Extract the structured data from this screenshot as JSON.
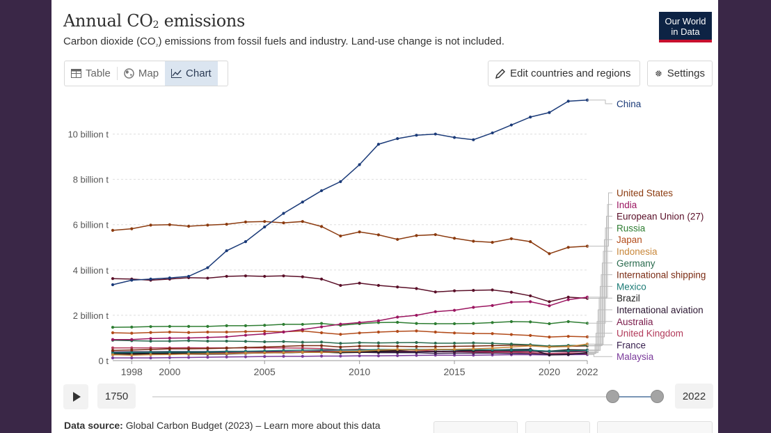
{
  "header": {
    "title_main": "Annual CO",
    "title_sub": "2",
    "title_end": " emissions",
    "subtitle_a": "Carbon dioxide (CO",
    "subtitle_sub": "₂",
    "subtitle_b": ") emissions from fossil fuels and industry. Land-use change is not included.",
    "logo_line1": "Our World",
    "logo_line2": "in Data"
  },
  "tabs": {
    "table": "Table",
    "map": "Map",
    "chart": "Chart"
  },
  "toolbar": {
    "edit": "Edit countries and regions",
    "settings": "Settings"
  },
  "timeline": {
    "start": "1750",
    "end": "2022"
  },
  "footer": {
    "label": "Data source:",
    "text": " Global Carbon Budget (2023) – Learn more about this data"
  },
  "colors": {
    "China": "#1a3a78",
    "United States": "#8b3a0e",
    "India": "#9b1560",
    "European Union (27)": "#5a0f28",
    "Russia": "#2e7d32",
    "Japan": "#b24b1a",
    "Indonesia": "#c8873a",
    "Germany": "#2a6b4e",
    "International shipping": "#7a2a12",
    "Mexico": "#1b7a75",
    "Brazil": "#1c1c1c",
    "International aviation": "#2a1530",
    "Australia": "#7a1a4a",
    "United Kingdom": "#b23a5a",
    "France": "#3a2250",
    "Malaysia": "#7a3a9a"
  },
  "chart_data": {
    "type": "line",
    "title": "Annual CO₂ emissions",
    "xlabel": "",
    "ylabel": "",
    "x": [
      1997,
      1998,
      1999,
      2000,
      2001,
      2002,
      2003,
      2004,
      2005,
      2006,
      2007,
      2008,
      2009,
      2010,
      2011,
      2012,
      2013,
      2014,
      2015,
      2016,
      2017,
      2018,
      2019,
      2020,
      2021,
      2022
    ],
    "xticks": [
      1998,
      2000,
      2005,
      2010,
      2015,
      2020,
      2022
    ],
    "xtick_labels": [
      "1998",
      "2000",
      "2005",
      "2010",
      "2015",
      "2020",
      "2022"
    ],
    "yticks": [
      0,
      2,
      4,
      6,
      8,
      10
    ],
    "ytick_labels": [
      "0 t",
      "2 billion t",
      "4 billion t",
      "6 billion t",
      "8 billion t",
      "10 billion t"
    ],
    "ylim": [
      0,
      11.8
    ],
    "grid": true,
    "units": "billion t",
    "series": [
      {
        "name": "China",
        "values": [
          3.35,
          3.55,
          3.6,
          3.65,
          3.72,
          4.1,
          4.85,
          5.25,
          5.9,
          6.5,
          7.0,
          7.5,
          7.9,
          8.65,
          9.55,
          9.8,
          9.95,
          10.0,
          9.85,
          9.75,
          10.05,
          10.4,
          10.75,
          10.95,
          11.45,
          11.5
        ]
      },
      {
        "name": "United States",
        "values": [
          5.75,
          5.82,
          5.98,
          6.0,
          5.93,
          5.98,
          6.02,
          6.12,
          6.14,
          6.08,
          6.14,
          5.92,
          5.5,
          5.68,
          5.55,
          5.35,
          5.52,
          5.56,
          5.4,
          5.27,
          5.22,
          5.38,
          5.25,
          4.72,
          5.0,
          5.05
        ]
      },
      {
        "name": "India",
        "values": [
          0.93,
          0.93,
          0.97,
          0.99,
          1.0,
          1.02,
          1.05,
          1.12,
          1.18,
          1.26,
          1.37,
          1.49,
          1.61,
          1.68,
          1.76,
          1.92,
          2.0,
          2.16,
          2.22,
          2.35,
          2.43,
          2.58,
          2.6,
          2.42,
          2.69,
          2.8
        ]
      },
      {
        "name": "European Union (27)",
        "values": [
          3.62,
          3.6,
          3.55,
          3.6,
          3.66,
          3.64,
          3.72,
          3.74,
          3.72,
          3.74,
          3.7,
          3.6,
          3.32,
          3.42,
          3.32,
          3.25,
          3.18,
          3.03,
          3.08,
          3.1,
          3.12,
          3.02,
          2.86,
          2.6,
          2.8,
          2.75
        ]
      },
      {
        "name": "Russia",
        "values": [
          1.47,
          1.48,
          1.5,
          1.51,
          1.51,
          1.51,
          1.54,
          1.54,
          1.56,
          1.6,
          1.6,
          1.64,
          1.56,
          1.63,
          1.68,
          1.69,
          1.64,
          1.63,
          1.63,
          1.64,
          1.68,
          1.72,
          1.71,
          1.63,
          1.72,
          1.65
        ]
      },
      {
        "name": "Japan",
        "values": [
          1.23,
          1.21,
          1.24,
          1.26,
          1.24,
          1.26,
          1.26,
          1.28,
          1.29,
          1.27,
          1.31,
          1.23,
          1.16,
          1.22,
          1.26,
          1.29,
          1.31,
          1.26,
          1.22,
          1.2,
          1.19,
          1.15,
          1.11,
          1.04,
          1.07,
          1.05
        ]
      },
      {
        "name": "Indonesia",
        "values": [
          0.26,
          0.24,
          0.26,
          0.27,
          0.29,
          0.3,
          0.31,
          0.33,
          0.34,
          0.35,
          0.37,
          0.36,
          0.39,
          0.41,
          0.46,
          0.49,
          0.46,
          0.5,
          0.5,
          0.52,
          0.55,
          0.6,
          0.65,
          0.6,
          0.62,
          0.73
        ]
      },
      {
        "name": "Germany",
        "values": [
          0.9,
          0.88,
          0.86,
          0.86,
          0.88,
          0.86,
          0.86,
          0.85,
          0.83,
          0.84,
          0.81,
          0.82,
          0.76,
          0.79,
          0.78,
          0.79,
          0.8,
          0.77,
          0.77,
          0.78,
          0.76,
          0.73,
          0.7,
          0.64,
          0.67,
          0.67
        ]
      },
      {
        "name": "International shipping",
        "values": [
          0.45,
          0.47,
          0.49,
          0.52,
          0.52,
          0.53,
          0.55,
          0.58,
          0.6,
          0.63,
          0.66,
          0.66,
          0.6,
          0.64,
          0.64,
          0.63,
          0.62,
          0.62,
          0.63,
          0.64,
          0.66,
          0.68,
          0.68,
          0.61,
          0.63,
          0.65
        ]
      },
      {
        "name": "Mexico",
        "values": [
          0.34,
          0.36,
          0.37,
          0.38,
          0.38,
          0.38,
          0.4,
          0.41,
          0.43,
          0.45,
          0.46,
          0.47,
          0.47,
          0.47,
          0.49,
          0.49,
          0.49,
          0.48,
          0.48,
          0.48,
          0.48,
          0.47,
          0.46,
          0.41,
          0.43,
          0.45
        ]
      },
      {
        "name": "Brazil",
        "values": [
          0.3,
          0.31,
          0.32,
          0.33,
          0.33,
          0.33,
          0.32,
          0.33,
          0.34,
          0.34,
          0.36,
          0.37,
          0.35,
          0.4,
          0.42,
          0.45,
          0.48,
          0.5,
          0.48,
          0.45,
          0.46,
          0.45,
          0.45,
          0.42,
          0.48,
          0.47
        ]
      },
      {
        "name": "International aviation",
        "values": [
          0.26,
          0.27,
          0.28,
          0.29,
          0.28,
          0.28,
          0.29,
          0.32,
          0.34,
          0.35,
          0.37,
          0.37,
          0.35,
          0.36,
          0.38,
          0.38,
          0.39,
          0.4,
          0.42,
          0.44,
          0.47,
          0.49,
          0.5,
          0.25,
          0.27,
          0.35
        ]
      },
      {
        "name": "Australia",
        "values": [
          0.33,
          0.35,
          0.36,
          0.37,
          0.37,
          0.37,
          0.36,
          0.38,
          0.39,
          0.39,
          0.4,
          0.42,
          0.41,
          0.41,
          0.41,
          0.41,
          0.4,
          0.39,
          0.4,
          0.4,
          0.41,
          0.41,
          0.41,
          0.39,
          0.39,
          0.39
        ]
      },
      {
        "name": "United Kingdom",
        "values": [
          0.56,
          0.56,
          0.56,
          0.56,
          0.57,
          0.56,
          0.56,
          0.56,
          0.56,
          0.56,
          0.55,
          0.53,
          0.48,
          0.5,
          0.46,
          0.48,
          0.46,
          0.42,
          0.4,
          0.38,
          0.37,
          0.37,
          0.35,
          0.31,
          0.33,
          0.32
        ]
      },
      {
        "name": "France",
        "values": [
          0.38,
          0.39,
          0.39,
          0.4,
          0.4,
          0.4,
          0.41,
          0.41,
          0.41,
          0.4,
          0.39,
          0.39,
          0.37,
          0.37,
          0.35,
          0.35,
          0.35,
          0.32,
          0.33,
          0.33,
          0.33,
          0.32,
          0.31,
          0.27,
          0.3,
          0.3
        ]
      },
      {
        "name": "Malaysia",
        "values": [
          0.12,
          0.12,
          0.12,
          0.13,
          0.14,
          0.15,
          0.16,
          0.17,
          0.18,
          0.19,
          0.19,
          0.2,
          0.2,
          0.21,
          0.21,
          0.22,
          0.23,
          0.24,
          0.24,
          0.24,
          0.25,
          0.26,
          0.26,
          0.25,
          0.26,
          0.27
        ]
      }
    ],
    "labels": [
      "China",
      "United States",
      "India",
      "European Union (27)",
      "Russia",
      "Japan",
      "Indonesia",
      "Germany",
      "International shipping",
      "Mexico",
      "Brazil",
      "International aviation",
      "Australia",
      "United Kingdom",
      "France",
      "Malaysia"
    ]
  }
}
